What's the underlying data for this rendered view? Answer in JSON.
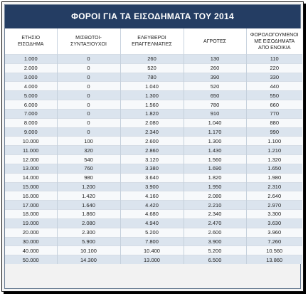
{
  "title": "ΦΟΡΟΙ ΓΙΑ ΤΑ ΕΙΣΟΔΗΜΑΤΑ ΤΟΥ  2014",
  "colors": {
    "header_bg": "#243d63",
    "row_odd": "#dbe4ee",
    "row_even": "#f7f9fb"
  },
  "columns": [
    "ΕΤΗΣΙΟ\nΕΙΣΟΔΗΜΑ",
    "ΜΙΣΘΩΤΟΙ-\nΣΥΝΤΑΞΙΟΥΧΟΙ",
    "ΕΛΕΥΘΕΡΟΙ\nΕΠΑΓΓΕΛΜΑΤΙΕΣ",
    "ΑΓΡΟΤΕΣ",
    "ΦΟΡΟΛΟΓΟΥΜΕΝΟΙ\nΜΕ ΕΙΣΟΔΗΜΑΤΑ\nΑΠΟ ΕΝΟΙΚΙΑ"
  ],
  "rows": [
    [
      "1.000",
      "0",
      "260",
      "130",
      "110"
    ],
    [
      "2.000",
      "0",
      "520",
      "260",
      "220"
    ],
    [
      "3.000",
      "0",
      "780",
      "390",
      "330"
    ],
    [
      "4.000",
      "0",
      "1.040",
      "520",
      "440"
    ],
    [
      "5.000",
      "0",
      "1.300",
      "650",
      "550"
    ],
    [
      "6.000",
      "0",
      "1.560",
      "780",
      "660"
    ],
    [
      "7.000",
      "0",
      "1.820",
      "910",
      "770"
    ],
    [
      "8.000",
      "0",
      "2.080",
      "1.040",
      "880"
    ],
    [
      "9.000",
      "0",
      "2.340",
      "1.170",
      "990"
    ],
    [
      "10.000",
      "100",
      "2.600",
      "1.300",
      "1.100"
    ],
    [
      "11.000",
      "320",
      "2.860",
      "1.430",
      "1.210"
    ],
    [
      "12.000",
      "540",
      "3.120",
      "1.560",
      "1.320"
    ],
    [
      "13.000",
      "760",
      "3.380",
      "1.690",
      "1.650"
    ],
    [
      "14.000",
      "980",
      "3.640",
      "1.820",
      "1.980"
    ],
    [
      "15.000",
      "1.200",
      "3.900",
      "1.950",
      "2.310"
    ],
    [
      "16.000",
      "1.420",
      "4.160",
      "2.080",
      "2.640"
    ],
    [
      "17.000",
      "1.640",
      "4.420",
      "2.210",
      "2.970"
    ],
    [
      "18.000",
      "1.860",
      "4.680",
      "2.340",
      "3.300"
    ],
    [
      "19.000",
      "2.080",
      "4.940",
      "2.470",
      "3.630"
    ],
    [
      "20.000",
      "2.300",
      "5.200",
      "2.600",
      "3.960"
    ],
    [
      "30.000",
      "5.900",
      "7.800",
      "3.900",
      "7.260"
    ],
    [
      "40.000",
      "10.100",
      "10.400",
      "5.200",
      "10.560"
    ],
    [
      "50.000",
      "14.300",
      "13.000",
      "6.500",
      "13.860"
    ]
  ]
}
